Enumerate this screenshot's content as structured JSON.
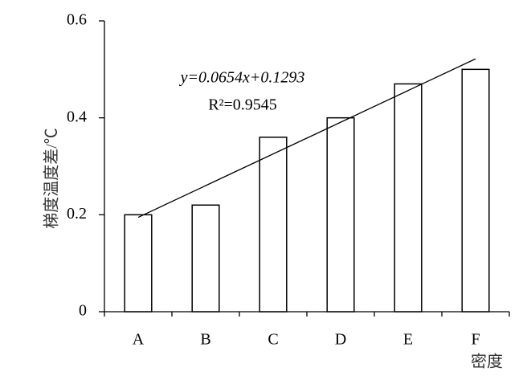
{
  "chart_data": {
    "type": "bar",
    "x_label": "密度",
    "y_label": "梯度温度差/℃",
    "categories": [
      "A",
      "B",
      "C",
      "D",
      "E",
      "F"
    ],
    "values": [
      0.2,
      0.22,
      0.36,
      0.4,
      0.47,
      0.5
    ],
    "color": "#ffffff",
    "ylim": [
      0,
      0.6
    ],
    "yticks": [
      0,
      0.2,
      0.4,
      0.6
    ],
    "grid": false,
    "trendline": {
      "slope": 0.0654,
      "intercept": 0.1293,
      "equation": "y=0.0654x+0.1293",
      "r_squared_label": "R²=0.9545"
    }
  }
}
